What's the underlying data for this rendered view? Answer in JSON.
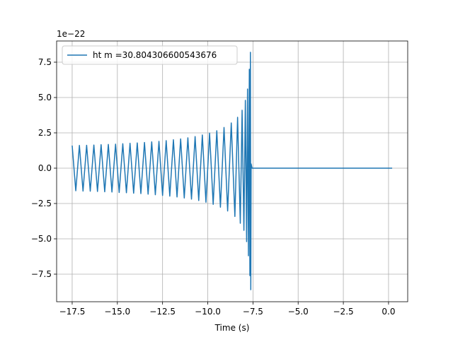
{
  "chart_data": {
    "type": "line",
    "x_label": "Time (s)",
    "offset_text": "1e−22",
    "legend": "upper left",
    "grid": true,
    "xlim": [
      -18.36,
      1.06
    ],
    "ylim": [
      -9.45,
      9.0
    ],
    "xticks": [
      {
        "value": -17.5,
        "label": "−17.5"
      },
      {
        "value": -15,
        "label": "−15.0"
      },
      {
        "value": -12.5,
        "label": "−12.5"
      },
      {
        "value": -10,
        "label": "−10.0"
      },
      {
        "value": -7.5,
        "label": "−7.5"
      },
      {
        "value": -5,
        "label": "−5.0"
      },
      {
        "value": -2.5,
        "label": "−2.5"
      },
      {
        "value": 0,
        "label": "0.0"
      }
    ],
    "yticks": [
      {
        "value": -7.5,
        "label": "−7.5"
      },
      {
        "value": -5,
        "label": "−5.0"
      },
      {
        "value": -2.5,
        "label": "−2.5"
      },
      {
        "value": 0,
        "label": "0.0"
      },
      2.5,
      {
        "value": 5,
        "label": "5.0"
      },
      7.5
    ],
    "series": [
      {
        "name": "ht m =30.804306600543676",
        "color": "#1f77b4",
        "x": [
          -17.5,
          -17.3,
          -17.1,
          -16.9,
          -16.7,
          -16.5,
          -16.3,
          -16.1,
          -15.9,
          -15.7,
          -15.5,
          -15.3,
          -15.1,
          -14.9,
          -14.7,
          -14.5,
          -14.3,
          -14.1,
          -13.9,
          -13.7,
          -13.5,
          -13.3,
          -13.1,
          -12.9,
          -12.7,
          -12.5,
          -12.3,
          -12.1,
          -11.9,
          -11.7,
          -11.5,
          -11.3,
          -11.1,
          -10.9,
          -10.7,
          -10.5,
          -10.3,
          -10.1,
          -9.9,
          -9.7,
          -9.5,
          -9.3,
          -9.1,
          -8.9,
          -8.7,
          -8.5,
          -8.35,
          -8.2,
          -8.1,
          -8.0,
          -7.92,
          -7.85,
          -7.8,
          -7.75,
          -7.7,
          -7.67,
          -7.64,
          -7.62,
          -7.6,
          -7.55,
          0.2
        ],
        "values": [
          1.6,
          -1.6,
          1.61,
          -1.62,
          1.62,
          -1.63,
          1.64,
          -1.65,
          1.66,
          -1.67,
          1.68,
          -1.69,
          1.7,
          -1.72,
          1.73,
          -1.74,
          1.76,
          -1.77,
          1.79,
          -1.8,
          1.82,
          -1.84,
          1.86,
          -1.88,
          1.9,
          -1.93,
          1.95,
          -1.98,
          2.01,
          -2.04,
          2.07,
          -2.11,
          2.15,
          -2.19,
          2.24,
          -2.29,
          2.35,
          -2.41,
          2.48,
          -2.56,
          2.65,
          -2.76,
          2.88,
          -3.03,
          3.2,
          -3.42,
          3.6,
          -3.9,
          4.1,
          -4.4,
          4.8,
          -5.2,
          5.6,
          -6.2,
          7.0,
          -7.6,
          8.2,
          -8.6,
          0.3,
          0,
          0
        ]
      }
    ]
  }
}
